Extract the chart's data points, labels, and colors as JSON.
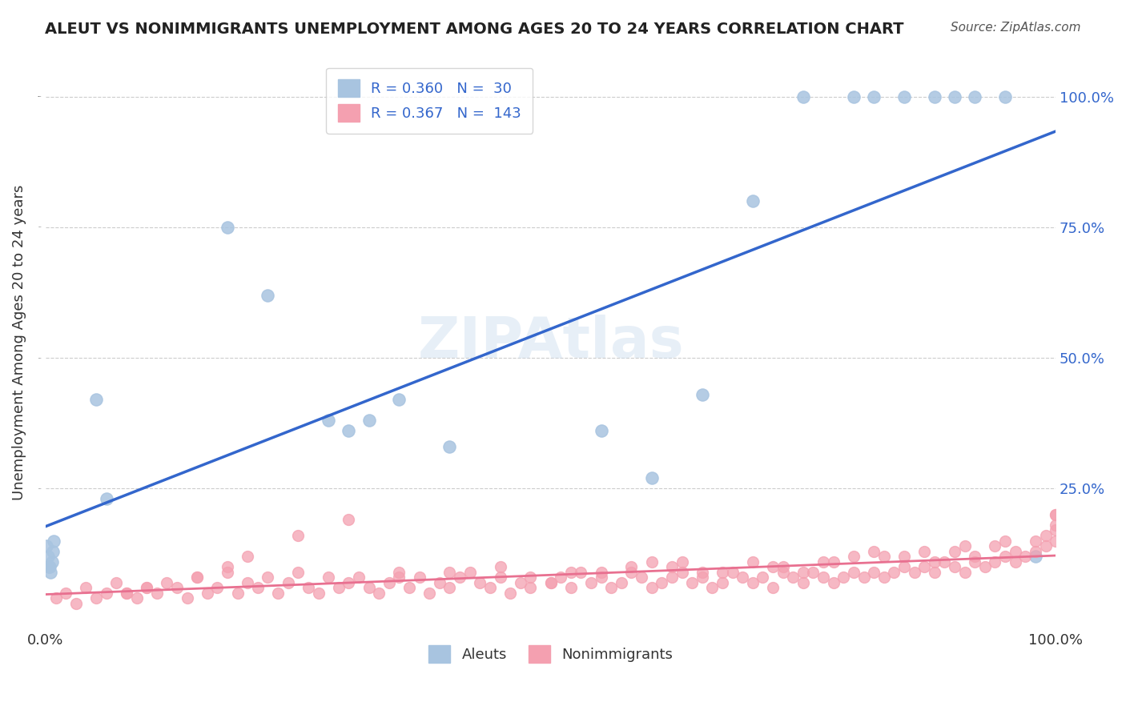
{
  "title": "ALEUT VS NONIMMIGRANTS UNEMPLOYMENT AMONG AGES 20 TO 24 YEARS CORRELATION CHART",
  "source": "Source: ZipAtlas.com",
  "xlabel": "",
  "ylabel": "Unemployment Among Ages 20 to 24 years",
  "aleut_R": 0.36,
  "aleut_N": 30,
  "nonimm_R": 0.367,
  "nonimm_N": 143,
  "aleut_color": "#a8c4e0",
  "nonimm_color": "#f4a0b0",
  "aleut_line_color": "#3366cc",
  "nonimm_line_color": "#e87090",
  "watermark": "ZIPAtlas",
  "aleut_x": [
    0.001,
    0.002,
    0.003,
    0.004,
    0.005,
    0.006,
    0.007,
    0.008,
    0.05,
    0.06,
    0.18,
    0.22,
    0.28,
    0.3,
    0.32,
    0.35,
    0.4,
    0.55,
    0.6,
    0.65,
    0.7,
    0.75,
    0.8,
    0.82,
    0.85,
    0.88,
    0.9,
    0.92,
    0.95,
    0.98
  ],
  "aleut_y": [
    0.14,
    0.12,
    0.1,
    0.1,
    0.09,
    0.11,
    0.13,
    0.15,
    0.42,
    0.23,
    0.75,
    0.62,
    0.38,
    0.36,
    0.38,
    0.42,
    0.33,
    0.36,
    0.27,
    0.43,
    0.8,
    1.0,
    1.0,
    1.0,
    1.0,
    1.0,
    1.0,
    1.0,
    1.0,
    0.12
  ],
  "nonimm_x": [
    0.01,
    0.02,
    0.03,
    0.04,
    0.05,
    0.06,
    0.07,
    0.08,
    0.09,
    0.1,
    0.11,
    0.12,
    0.13,
    0.14,
    0.15,
    0.16,
    0.17,
    0.18,
    0.19,
    0.2,
    0.21,
    0.22,
    0.23,
    0.24,
    0.25,
    0.26,
    0.27,
    0.28,
    0.29,
    0.3,
    0.31,
    0.32,
    0.33,
    0.34,
    0.35,
    0.36,
    0.37,
    0.38,
    0.39,
    0.4,
    0.41,
    0.42,
    0.43,
    0.44,
    0.45,
    0.46,
    0.47,
    0.48,
    0.5,
    0.51,
    0.52,
    0.53,
    0.54,
    0.55,
    0.56,
    0.57,
    0.58,
    0.59,
    0.6,
    0.61,
    0.62,
    0.63,
    0.64,
    0.65,
    0.66,
    0.67,
    0.68,
    0.69,
    0.7,
    0.71,
    0.72,
    0.73,
    0.74,
    0.75,
    0.76,
    0.77,
    0.78,
    0.79,
    0.8,
    0.81,
    0.82,
    0.83,
    0.84,
    0.85,
    0.86,
    0.87,
    0.88,
    0.89,
    0.9,
    0.91,
    0.92,
    0.93,
    0.94,
    0.95,
    0.96,
    0.97,
    0.98,
    0.99,
    1.0,
    1.0,
    0.3,
    0.25,
    0.2,
    0.18,
    0.15,
    0.1,
    0.08,
    0.5,
    0.55,
    0.6,
    0.62,
    0.65,
    0.7,
    0.72,
    0.75,
    0.78,
    0.8,
    0.82,
    0.85,
    0.88,
    0.9,
    0.92,
    0.94,
    0.96,
    0.98,
    0.99,
    1.0,
    1.0,
    1.0,
    0.35,
    0.4,
    0.45,
    0.48,
    0.52,
    0.58,
    0.63,
    0.67,
    0.73,
    0.77,
    0.83,
    0.87,
    0.91,
    0.95
  ],
  "nonimm_y": [
    0.04,
    0.05,
    0.03,
    0.06,
    0.04,
    0.05,
    0.07,
    0.05,
    0.04,
    0.06,
    0.05,
    0.07,
    0.06,
    0.04,
    0.08,
    0.05,
    0.06,
    0.09,
    0.05,
    0.07,
    0.06,
    0.08,
    0.05,
    0.07,
    0.09,
    0.06,
    0.05,
    0.08,
    0.06,
    0.07,
    0.08,
    0.06,
    0.05,
    0.07,
    0.09,
    0.06,
    0.08,
    0.05,
    0.07,
    0.06,
    0.08,
    0.09,
    0.07,
    0.06,
    0.08,
    0.05,
    0.07,
    0.06,
    0.07,
    0.08,
    0.06,
    0.09,
    0.07,
    0.08,
    0.06,
    0.07,
    0.09,
    0.08,
    0.06,
    0.07,
    0.08,
    0.09,
    0.07,
    0.08,
    0.06,
    0.07,
    0.09,
    0.08,
    0.07,
    0.08,
    0.06,
    0.09,
    0.08,
    0.07,
    0.09,
    0.08,
    0.07,
    0.08,
    0.09,
    0.08,
    0.09,
    0.08,
    0.09,
    0.1,
    0.09,
    0.1,
    0.09,
    0.11,
    0.1,
    0.09,
    0.11,
    0.1,
    0.11,
    0.12,
    0.11,
    0.12,
    0.13,
    0.14,
    0.15,
    0.2,
    0.19,
    0.16,
    0.12,
    0.1,
    0.08,
    0.06,
    0.05,
    0.07,
    0.09,
    0.11,
    0.1,
    0.09,
    0.11,
    0.1,
    0.09,
    0.11,
    0.12,
    0.13,
    0.12,
    0.11,
    0.13,
    0.12,
    0.14,
    0.13,
    0.15,
    0.16,
    0.17,
    0.18,
    0.2,
    0.08,
    0.09,
    0.1,
    0.08,
    0.09,
    0.1,
    0.11,
    0.09,
    0.1,
    0.11,
    0.12,
    0.13,
    0.14,
    0.15
  ],
  "xlim": [
    0.0,
    1.0
  ],
  "ylim": [
    0.0,
    1.0
  ],
  "xtick_labels": [
    "0.0%",
    "100.0%"
  ],
  "ytick_labels": [
    "25.0%",
    "50.0%",
    "75.0%",
    "100.0%"
  ],
  "ytick_vals": [
    0.25,
    0.5,
    0.75,
    1.0
  ],
  "legend_label_aleuts": "Aleuts",
  "legend_label_nonimm": "Nonimmigrants"
}
